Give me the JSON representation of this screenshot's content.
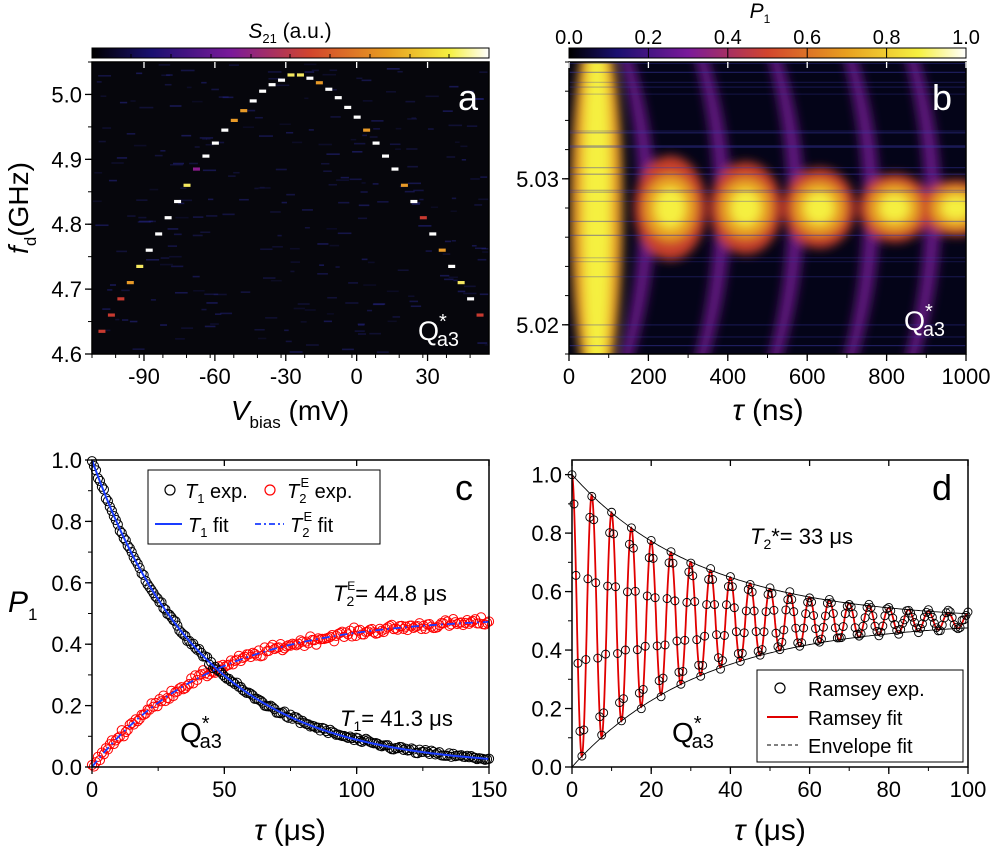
{
  "chart_data": [
    {
      "panel": "a",
      "type": "heatmap",
      "colorbar_label_main": "S",
      "colorbar_label_sub": "21",
      "colorbar_label_unit": " (a.u.)",
      "xlabel_main": "V",
      "xlabel_sub": "bias",
      "xlabel_unit": " (mV)",
      "ylabel_main": "f",
      "ylabel_sub": "d",
      "ylabel_unit": "(GHz)",
      "xlim": [
        -112,
        56
      ],
      "ylim": [
        4.6,
        5.05
      ],
      "xticks": [
        -90,
        -60,
        -30,
        0,
        30
      ],
      "xtick_labels": [
        "-90",
        "-60",
        "-30",
        "0",
        "30"
      ],
      "yticks": [
        4.6,
        4.7,
        4.8,
        4.9,
        5.0
      ],
      "ytick_labels": [
        "4.6",
        "4.7",
        "4.8",
        "4.9",
        "5.0"
      ],
      "qubit_main": "Q",
      "qubit_sup": "*",
      "qubit_sub": "a3",
      "panel_letter": "a",
      "series": [
        {
          "name": "resonance",
          "x": [
            -108,
            -104,
            -100,
            -96,
            -92,
            -88,
            -84,
            -80,
            -76,
            -72,
            -68,
            -64,
            -60,
            -56,
            -52,
            -48,
            -44,
            -40,
            -36,
            -32,
            -28,
            -24,
            -20,
            -16,
            -12,
            -8,
            -4,
            0,
            4,
            8,
            12,
            16,
            20,
            24,
            28,
            32,
            36,
            40,
            44,
            48,
            52
          ],
          "y": [
            4.635,
            4.66,
            4.685,
            4.71,
            4.735,
            4.76,
            4.785,
            4.81,
            4.835,
            4.86,
            4.885,
            4.905,
            4.925,
            4.945,
            4.96,
            4.975,
            4.99,
            5.005,
            5.015,
            5.022,
            5.03,
            5.03,
            5.025,
            5.018,
            5.008,
            4.995,
            4.98,
            4.965,
            4.945,
            4.925,
            4.905,
            4.885,
            4.86,
            4.835,
            4.81,
            4.785,
            4.76,
            4.735,
            4.71,
            4.685,
            4.66
          ],
          "intensity": [
            0.5,
            0.55,
            0.6,
            0.7,
            0.9,
            1.0,
            1.0,
            1.0,
            1.0,
            0.85,
            0.45,
            1.0,
            1.0,
            1.0,
            0.75,
            0.7,
            1.0,
            1.0,
            1.0,
            1.0,
            0.8,
            0.8,
            1.0,
            0.7,
            1.0,
            1.0,
            1.0,
            1.0,
            0.75,
            1.0,
            1.0,
            1.0,
            0.75,
            1.0,
            0.55,
            1.0,
            0.7,
            1.0,
            0.85,
            1.0,
            0.55
          ]
        }
      ]
    },
    {
      "panel": "b",
      "type": "heatmap",
      "colorbar_label_main": "P",
      "colorbar_label_sub": "1",
      "colorbar_ticks": [
        0.0,
        0.2,
        0.4,
        0.6,
        0.8,
        1.0
      ],
      "colorbar_tick_labels": [
        "0.0",
        "0.2",
        "0.4",
        "0.6",
        "0.8",
        "1.0"
      ],
      "xlabel_main": "τ",
      "xlabel_unit": " (ns)",
      "xlim": [
        0,
        1000
      ],
      "ylim": [
        5.018,
        5.038
      ],
      "xticks": [
        0,
        200,
        400,
        600,
        800,
        1000
      ],
      "xtick_labels": [
        "0",
        "200",
        "400",
        "600",
        "800",
        "1000"
      ],
      "yticks": [
        5.02,
        5.03
      ],
      "ytick_labels": [
        "5.02",
        "5.03"
      ],
      "qubit_main": "Q",
      "qubit_sup": "*",
      "qubit_sub": "a3",
      "panel_letter": "b",
      "center_frequency": 5.028,
      "rabi_peaks_ns": [
        70,
        255,
        445,
        630,
        820,
        975
      ]
    },
    {
      "panel": "c",
      "type": "scatter",
      "xlabel_main": "τ",
      "xlabel_unit": " (μs)",
      "ylabel_main": "P",
      "ylabel_sub": "1",
      "xlim": [
        0,
        150
      ],
      "ylim": [
        0.0,
        1.0
      ],
      "xticks": [
        0,
        50,
        100,
        150
      ],
      "xtick_labels": [
        "0",
        "50",
        "100",
        "150"
      ],
      "yticks": [
        0.0,
        0.2,
        0.4,
        0.6,
        0.8,
        1.0
      ],
      "ytick_labels": [
        "0.0",
        "0.2",
        "0.4",
        "0.6",
        "0.8",
        "1.0"
      ],
      "series": [
        {
          "name": "T1 exp.",
          "label_main": "T",
          "label_sub": "1",
          "label_rest": " exp.",
          "kind": "points",
          "color": "#000000",
          "model": "decay",
          "tau_us": 41.3,
          "amplitude": 1.0,
          "offset": 0.0
        },
        {
          "name": "T2E exp.",
          "label_main": "T",
          "label_sub": "2",
          "label_sup": "E",
          "label_rest": " exp.",
          "kind": "points",
          "color": "#ff0000",
          "model": "rise",
          "tau_us": 44.8,
          "amplitude": 0.49,
          "offset": 0.0
        },
        {
          "name": "T1 fit",
          "label_main": "T",
          "label_sub": "1",
          "label_rest": " fit",
          "kind": "line",
          "color": "#1a3cff",
          "model": "decay",
          "tau_us": 41.3,
          "amplitude": 1.0,
          "offset": 0.0
        },
        {
          "name": "T2E fit",
          "label_main": "T",
          "label_sub": "2",
          "label_sup": "E",
          "label_rest": " fit",
          "kind": "dashdot",
          "color": "#1a3cff",
          "model": "rise",
          "tau_us": 44.8,
          "amplitude": 0.49,
          "offset": 0.0
        }
      ],
      "annotations": {
        "t2e_main": "T",
        "t2e_sub": "2",
        "t2e_sup": "E",
        "t2e_value": "= 44.8 μs",
        "t1_main": "T",
        "t1_sub": "1",
        "t1_value": "= 41.3 μs"
      },
      "qubit_main": "Q",
      "qubit_sup": "*",
      "qubit_sub": "a3",
      "panel_letter": "c"
    },
    {
      "panel": "d",
      "type": "scatter",
      "xlabel_main": "τ",
      "xlabel_unit": " (μs)",
      "xlim": [
        0,
        100
      ],
      "ylim": [
        0.0,
        1.05
      ],
      "xticks": [
        0,
        20,
        40,
        60,
        80,
        100
      ],
      "xtick_labels": [
        "0",
        "20",
        "40",
        "60",
        "80",
        "100"
      ],
      "yticks": [
        0.0,
        0.2,
        0.4,
        0.6,
        0.8,
        1.0
      ],
      "ytick_labels": [
        "0.0",
        "0.2",
        "0.4",
        "0.6",
        "0.8",
        "1.0"
      ],
      "ramsey": {
        "T2star_us": 33,
        "period_us": 5.0,
        "mean": 0.5,
        "amplitude": 0.5
      },
      "series": [
        {
          "name": "Ramsey exp.",
          "kind": "points",
          "color": "#000000"
        },
        {
          "name": "Ramsey fit",
          "kind": "line",
          "color": "#e00000"
        },
        {
          "name": "Envelope fit",
          "kind": "dashed",
          "color": "#000000"
        }
      ],
      "annotation_main": "T",
      "annotation_sub": "2",
      "annotation_value": "*= 33 μs",
      "qubit_main": "Q",
      "qubit_sup": "*",
      "qubit_sub": "a3",
      "panel_letter": "d"
    }
  ]
}
